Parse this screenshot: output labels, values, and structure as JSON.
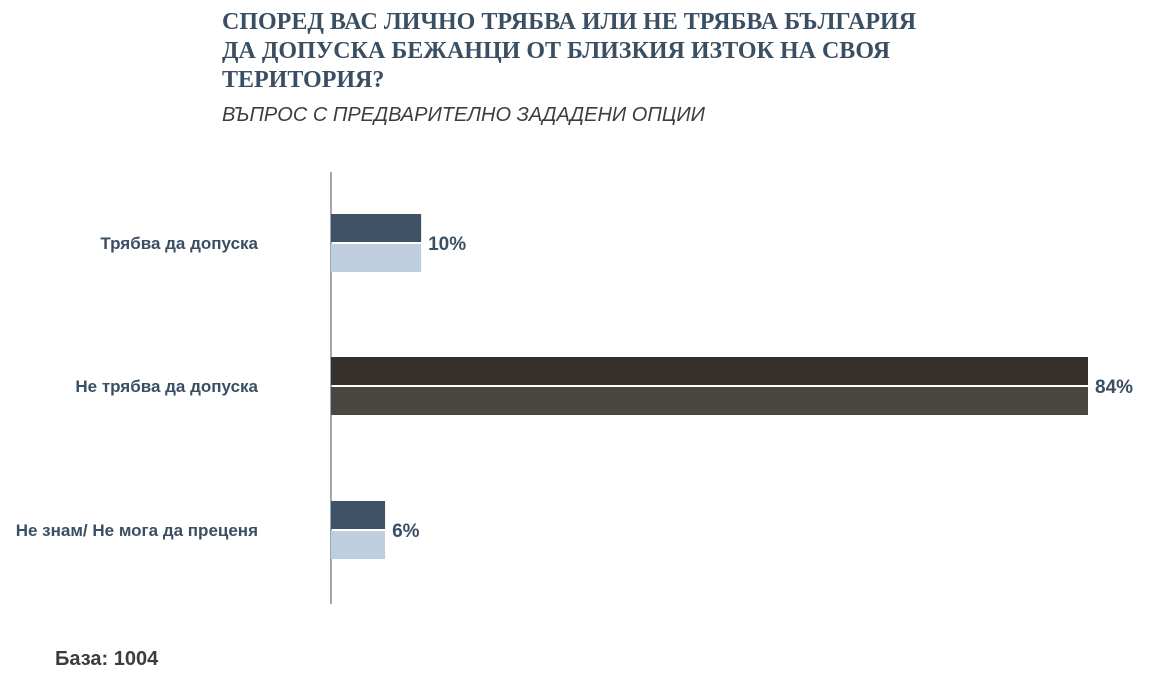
{
  "chart_data": {
    "type": "bar",
    "orientation": "horizontal",
    "title": "СПОРЕД ВАС ЛИЧНО ТРЯБВА ИЛИ НЕ ТРЯБВА БЪЛГАРИЯ ДА ДОПУСКА БЕЖАНЦИ ОТ БЛИЗКИЯ ИЗТОК НА СВОЯ ТЕРИТОРИЯ?",
    "subtitle": "ВЪПРОС С ПРЕДВАРИТЕЛНО ЗАДАДЕНИ ОПЦИИ",
    "categories": [
      "Трябва да допуска",
      "Не трябва да допуска",
      "Не знам/ Не мога да преценя"
    ],
    "values": [
      10,
      84,
      6
    ],
    "value_labels": [
      "10%",
      "84%",
      "6%"
    ],
    "unit": "%",
    "xlim": [
      0,
      84
    ],
    "grid": false,
    "colors": {
      "default_top": "#3f5266",
      "default_bottom": "#bfcfdf",
      "highlight_top": "#36302c",
      "highlight_bottom": "#4a4640",
      "axis": "#3a4f63"
    },
    "highlight_index": 1
  },
  "footer": {
    "base": "База: 1004"
  }
}
